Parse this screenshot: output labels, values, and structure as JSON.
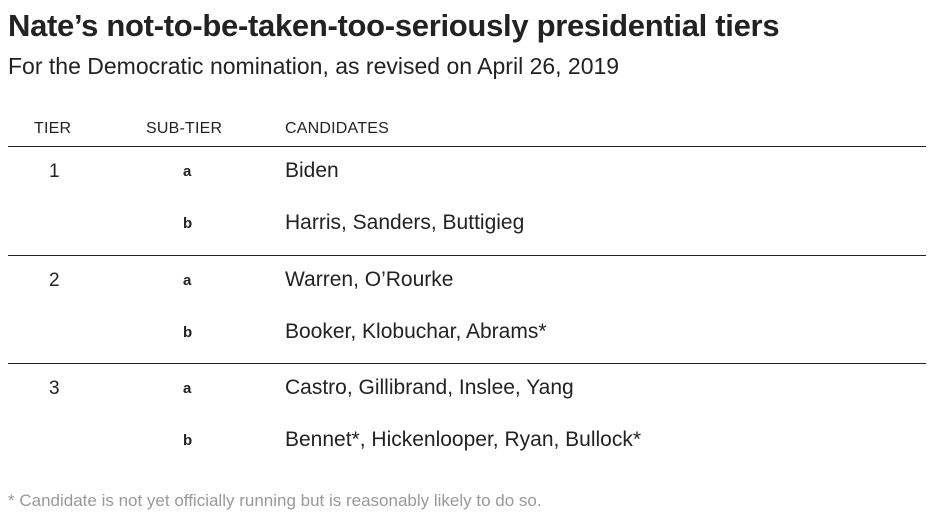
{
  "header": {
    "title": "Nate’s not-to-be-taken-too-seriously presidential tiers",
    "subtitle": "For the Democratic nomination, as revised on April 26, 2019"
  },
  "table": {
    "columns": {
      "tier": "TIER",
      "subtier": "SUB-TIER",
      "candidates": "CANDIDATES"
    },
    "tiers": [
      {
        "tier": "1",
        "rows": [
          {
            "subtier": "a",
            "candidates": "Biden"
          },
          {
            "subtier": "b",
            "candidates": "Harris, Sanders, Buttigieg"
          }
        ]
      },
      {
        "tier": "2",
        "rows": [
          {
            "subtier": "a",
            "candidates": "Warren, O’Rourke"
          },
          {
            "subtier": "b",
            "candidates": "Booker, Klobuchar, Abrams*"
          }
        ]
      },
      {
        "tier": "3",
        "rows": [
          {
            "subtier": "a",
            "candidates": "Castro, Gillibrand, Inslee, Yang"
          },
          {
            "subtier": "b",
            "candidates": "Bennet*, Hickenlooper, Ryan, Bullock*"
          }
        ]
      }
    ]
  },
  "footnote": "* Candidate is not yet officially running but is reasonably likely to do so."
}
